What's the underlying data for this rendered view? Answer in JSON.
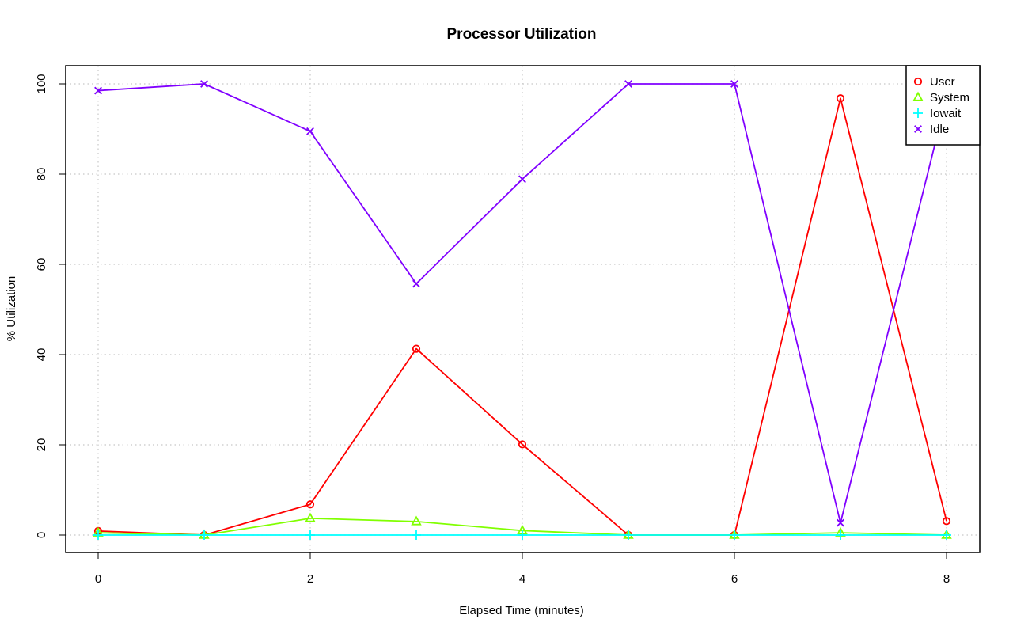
{
  "chart_data": {
    "type": "line",
    "title": "Processor Utilization",
    "xlabel": "Elapsed Time (minutes)",
    "ylabel": "% Utilization",
    "xlim": [
      0,
      8
    ],
    "ylim": [
      0,
      100
    ],
    "x_ticks": [
      0,
      2,
      4,
      6,
      8
    ],
    "y_ticks": [
      0,
      20,
      40,
      60,
      80,
      100
    ],
    "grid": true,
    "legend_position": "top-right",
    "x": [
      0,
      1,
      2,
      3,
      4,
      5,
      6,
      7,
      8
    ],
    "series": [
      {
        "name": "User",
        "color": "#ff0000",
        "marker": "circle",
        "values": [
          0.9,
          0,
          6.8,
          41.3,
          20.1,
          0,
          0,
          96.8,
          3.1
        ]
      },
      {
        "name": "System",
        "color": "#80ff00",
        "marker": "triangle",
        "values": [
          0.5,
          0,
          3.7,
          3.0,
          1.0,
          0,
          0,
          0.5,
          0
        ]
      },
      {
        "name": "Iowait",
        "color": "#00ffff",
        "marker": "plus",
        "values": [
          0,
          0,
          0,
          0,
          0,
          0,
          0,
          0,
          0
        ]
      },
      {
        "name": "Idle",
        "color": "#8000ff",
        "marker": "cross",
        "values": [
          98.5,
          100,
          89.5,
          55.7,
          78.9,
          100,
          100,
          2.7,
          96.9
        ]
      }
    ]
  }
}
